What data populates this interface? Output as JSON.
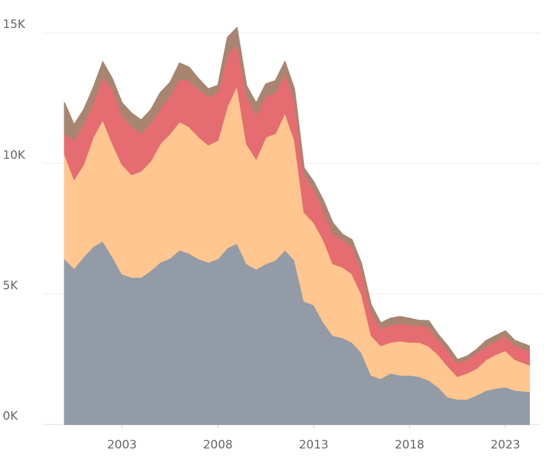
{
  "chart_data": {
    "type": "stacked_area",
    "x": [
      2000,
      2000.5,
      2001,
      2001.5,
      2002,
      2002.5,
      2003,
      2003.5,
      2004,
      2004.5,
      2005,
      2005.5,
      2006,
      2006.5,
      2007,
      2007.5,
      2008,
      2008.5,
      2009,
      2009.5,
      2010,
      2010.5,
      2011,
      2011.5,
      2012,
      2012.5,
      2013,
      2013.5,
      2014,
      2014.5,
      2015,
      2015.5,
      2016,
      2016.5,
      2017,
      2017.5,
      2018,
      2018.5,
      2019,
      2019.5,
      2020,
      2020.5,
      2021,
      2021.5,
      2022,
      2022.5,
      2023,
      2023.5,
      2024.25
    ],
    "series": [
      {
        "color": "#939ba6",
        "values": [
          6350,
          5980,
          6430,
          6820,
          7030,
          6430,
          5770,
          5640,
          5640,
          5900,
          6220,
          6370,
          6690,
          6560,
          6350,
          6220,
          6350,
          6770,
          6950,
          6160,
          5950,
          6160,
          6300,
          6690,
          6300,
          4720,
          4590,
          3930,
          3410,
          3330,
          3150,
          2750,
          1890,
          1760,
          1970,
          1890,
          1890,
          1840,
          1700,
          1440,
          1050,
          970,
          970,
          1130,
          1310,
          1390,
          1440,
          1310,
          1260
        ]
      },
      {
        "color": "#ffc68f",
        "values": [
          4010,
          3410,
          3540,
          4200,
          4640,
          4330,
          4200,
          3930,
          4070,
          4200,
          4540,
          4770,
          4910,
          4850,
          4670,
          4490,
          4540,
          5430,
          6030,
          4590,
          4220,
          4850,
          4850,
          5250,
          4590,
          3410,
          3150,
          3150,
          2750,
          2700,
          2620,
          2230,
          1520,
          1260,
          1180,
          1310,
          1260,
          1310,
          1310,
          1230,
          1180,
          870,
          1000,
          1020,
          1180,
          1290,
          1390,
          1180,
          1020
        ]
      },
      {
        "color": "#e56c70",
        "values": [
          790,
          1500,
          1570,
          1310,
          1650,
          2100,
          1890,
          1840,
          1440,
          1440,
          1360,
          1440,
          1650,
          1760,
          1840,
          1840,
          1840,
          1970,
          1570,
          1840,
          1680,
          1570,
          1570,
          1500,
          1570,
          1440,
          1310,
          1180,
          1180,
          1050,
          1050,
          920,
          920,
          660,
          660,
          680,
          660,
          660,
          710,
          600,
          600,
          520,
          520,
          600,
          520,
          520,
          580,
          520,
          550
        ]
      },
      {
        "color": "#a88571",
        "values": [
          1180,
          600,
          520,
          580,
          580,
          390,
          470,
          520,
          520,
          520,
          600,
          520,
          600,
          520,
          390,
          310,
          260,
          660,
          660,
          390,
          470,
          470,
          450,
          470,
          390,
          260,
          260,
          340,
          390,
          210,
          260,
          260,
          260,
          210,
          260,
          260,
          260,
          180,
          260,
          180,
          180,
          130,
          130,
          130,
          210,
          210,
          180,
          210,
          180
        ]
      }
    ],
    "xlim": [
      1998.85,
      2024.85
    ],
    "xticks": [
      2003,
      2008,
      2013,
      2018,
      2023
    ],
    "ylim": [
      0,
      16000
    ],
    "yticks": [
      {
        "value": 0,
        "label": "0K"
      },
      {
        "value": 5000,
        "label": "5K"
      },
      {
        "value": 10000,
        "label": "10K"
      },
      {
        "value": 15000,
        "label": "15K"
      }
    ],
    "grid": true
  }
}
